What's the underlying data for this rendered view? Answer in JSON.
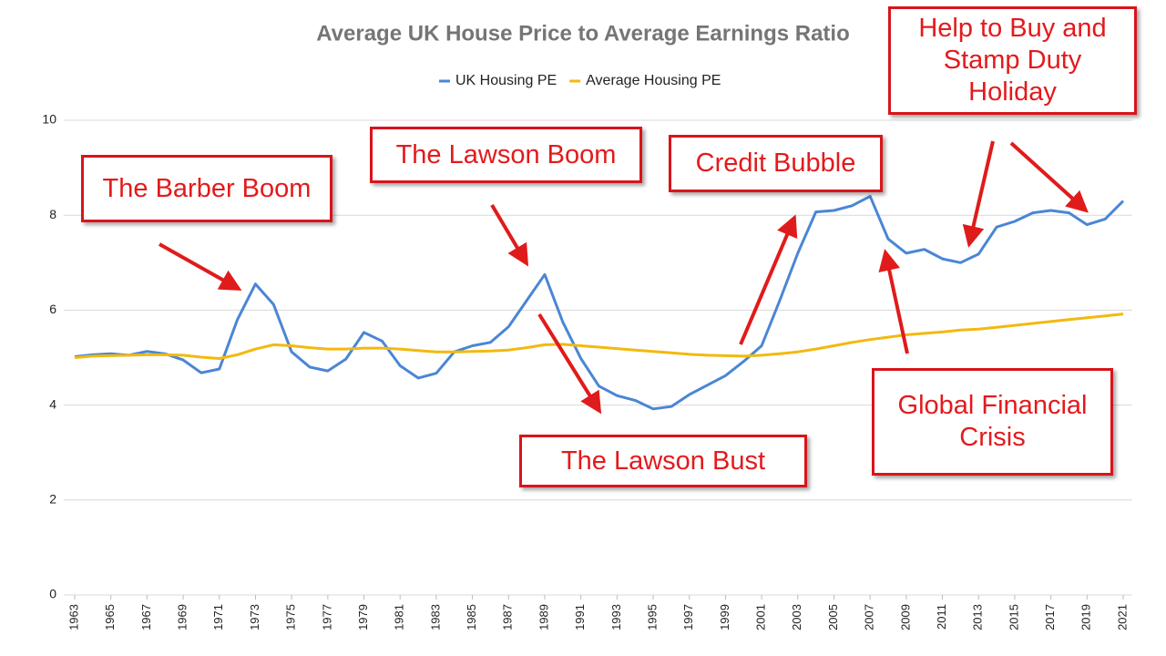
{
  "chart_data": {
    "type": "line",
    "title": "Average UK House Price to Average Earnings Ratio",
    "x": [
      1963,
      1964,
      1965,
      1966,
      1967,
      1968,
      1969,
      1970,
      1971,
      1972,
      1973,
      1974,
      1975,
      1976,
      1977,
      1978,
      1979,
      1980,
      1981,
      1982,
      1983,
      1984,
      1985,
      1986,
      1987,
      1988,
      1989,
      1990,
      1991,
      1992,
      1993,
      1994,
      1995,
      1996,
      1997,
      1998,
      1999,
      2000,
      2001,
      2002,
      2003,
      2004,
      2005,
      2006,
      2007,
      2008,
      2009,
      2010,
      2011,
      2012,
      2013,
      2014,
      2015,
      2016,
      2017,
      2018,
      2019,
      2020,
      2021
    ],
    "xlim": [
      1963,
      2021
    ],
    "xticks": [
      1963,
      1965,
      1967,
      1969,
      1971,
      1973,
      1975,
      1977,
      1979,
      1981,
      1983,
      1985,
      1987,
      1989,
      1991,
      1993,
      1995,
      1997,
      1999,
      2001,
      2003,
      2005,
      2007,
      2009,
      2011,
      2013,
      2015,
      2017,
      2019,
      2021
    ],
    "ylim": [
      0,
      10
    ],
    "yticks": [
      0,
      2,
      4,
      6,
      8,
      10
    ],
    "grid": true,
    "legend": "top",
    "series": [
      {
        "name": "UK Housing PE",
        "color": "#4a86d4",
        "values": [
          5.02,
          5.06,
          5.08,
          5.05,
          5.13,
          5.08,
          4.95,
          4.68,
          4.76,
          5.8,
          6.55,
          6.12,
          5.12,
          4.8,
          4.72,
          4.97,
          5.53,
          5.35,
          4.83,
          4.57,
          4.67,
          5.12,
          5.25,
          5.32,
          5.65,
          6.2,
          6.75,
          5.75,
          4.98,
          4.4,
          4.2,
          4.1,
          3.92,
          3.97,
          4.22,
          4.42,
          4.62,
          4.92,
          5.25,
          6.2,
          7.2,
          8.07,
          8.1,
          8.2,
          8.4,
          7.5,
          7.2,
          7.28,
          7.08,
          7.0,
          7.18,
          7.75,
          7.87,
          8.05,
          8.1,
          8.05,
          7.8,
          7.92,
          8.3
        ]
      },
      {
        "name": "Average Housing PE",
        "color": "#f2b90f",
        "values": [
          5.0,
          5.03,
          5.04,
          5.05,
          5.06,
          5.06,
          5.05,
          5.01,
          4.98,
          5.06,
          5.18,
          5.27,
          5.25,
          5.21,
          5.18,
          5.18,
          5.2,
          5.2,
          5.18,
          5.15,
          5.12,
          5.12,
          5.13,
          5.14,
          5.16,
          5.21,
          5.27,
          5.28,
          5.25,
          5.22,
          5.19,
          5.16,
          5.13,
          5.1,
          5.07,
          5.05,
          5.04,
          5.03,
          5.05,
          5.08,
          5.12,
          5.18,
          5.25,
          5.32,
          5.38,
          5.43,
          5.48,
          5.51,
          5.54,
          5.58,
          5.6,
          5.64,
          5.68,
          5.72,
          5.76,
          5.8,
          5.84,
          5.88,
          5.92
        ]
      }
    ],
    "annotations": [
      "The Barber Boom",
      "The Lawson Boom",
      "Credit Bubble",
      "The Lawson Bust",
      "Global Financial Crisis",
      "Help to Buy and Stamp Duty Holiday"
    ]
  }
}
